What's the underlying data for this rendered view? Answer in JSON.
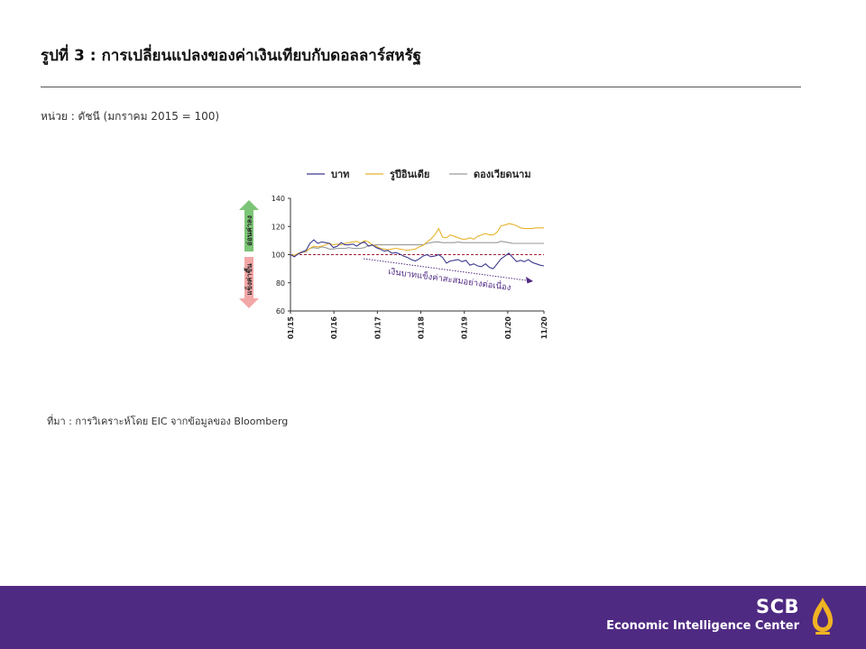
{
  "header": {
    "title": "รูปที่ 3 : การเปลี่ยนแปลงของค่าเงินเทียบกับดอลลาร์สหรัฐ",
    "unit": "หน่วย : ดัชนี (มกราคม 2015 = 100)"
  },
  "source": "ที่มา : การวิเคราะห์โดย EIC จากข้อมูลของ Bloomberg",
  "footer": {
    "brand_name": "SCB",
    "brand_sub": "Economic Intelligence Center",
    "background": "#4f2a82",
    "logo_color": "#f0b323"
  },
  "chart_data": {
    "type": "line",
    "title": "",
    "xlabel": "",
    "ylabel": "",
    "ylim": [
      60,
      140
    ],
    "y_ticks": [
      "60",
      "80",
      "100",
      "120",
      "140"
    ],
    "x_ticks": [
      "01/15",
      "01/16",
      "01/17",
      "01/18",
      "01/19",
      "01/20",
      "11/20"
    ],
    "reference_line": {
      "value": 100,
      "color": "#a0203a",
      "style": "dashed"
    },
    "side_labels": {
      "weaken": {
        "text": "อ่อนค่าลง",
        "color": "#7cc576"
      },
      "strengthen": {
        "text": "แข็งค่าขึ้น",
        "color": "#f2a7a7"
      }
    },
    "annotation": {
      "text": "เงินบาทแข็งค่าสะสมอย่างต่อเนื่อง",
      "color": "#4f2a82"
    },
    "legend_position": "top",
    "series": [
      {
        "name": "บาท",
        "color": "#3d3a8c",
        "values": [
          100,
          98.5,
          100.5,
          102,
          103,
          108,
          110.5,
          108,
          109,
          108.5,
          108,
          105,
          106,
          108.5,
          107,
          107,
          107.5,
          106,
          108,
          109,
          106,
          107,
          105,
          104,
          102.5,
          103,
          101,
          101.5,
          100.5,
          99,
          98,
          96.5,
          95.5,
          97,
          99,
          100,
          98.5,
          99,
          100,
          98,
          94,
          95.5,
          96,
          96.5,
          95,
          96,
          92.5,
          93.5,
          92,
          91.5,
          93.5,
          91,
          90,
          93.5,
          97,
          99,
          101,
          98,
          95,
          96,
          95,
          96.5,
          94.5,
          93.5,
          92.5,
          92
        ]
      },
      {
        "name": "รูปีอินเดีย",
        "color": "#e8b32e",
        "values": [
          100,
          99.5,
          101,
          102,
          102.5,
          104.5,
          106,
          105.5,
          106,
          107,
          108,
          107,
          107.5,
          107,
          108,
          108.5,
          109,
          109.5,
          108,
          110,
          109,
          107,
          106,
          104.5,
          104,
          103.5,
          104,
          104.5,
          104,
          103.5,
          103,
          103.5,
          104,
          105.5,
          106.5,
          109,
          111,
          114,
          118.5,
          112.5,
          112,
          114,
          113,
          112,
          111,
          111,
          112,
          111,
          113,
          114,
          115,
          114,
          114,
          116,
          120.5,
          121,
          122,
          121.5,
          120.5,
          119,
          118.5,
          118.5,
          118.5,
          119,
          119,
          119
        ]
      },
      {
        "name": "ดองเวียดนาม",
        "color": "#9a9a9a",
        "values": [
          100,
          99.5,
          100.5,
          101.5,
          102,
          104.5,
          105,
          104.5,
          105.5,
          105,
          104,
          104,
          104.5,
          104.5,
          104.5,
          105,
          104.5,
          104.5,
          104.5,
          105,
          106.5,
          106.5,
          107,
          107,
          107,
          107,
          107,
          107,
          107,
          107,
          107,
          107,
          107,
          107,
          107,
          108,
          108.5,
          109,
          109,
          108.5,
          108.5,
          108.5,
          108.5,
          109,
          108.5,
          108.5,
          108.5,
          108.5,
          108.5,
          108.5,
          108.5,
          108.5,
          108.5,
          108.5,
          109.5,
          109,
          108.5,
          108,
          108,
          108,
          108,
          108,
          108,
          108,
          108,
          108
        ]
      }
    ]
  }
}
